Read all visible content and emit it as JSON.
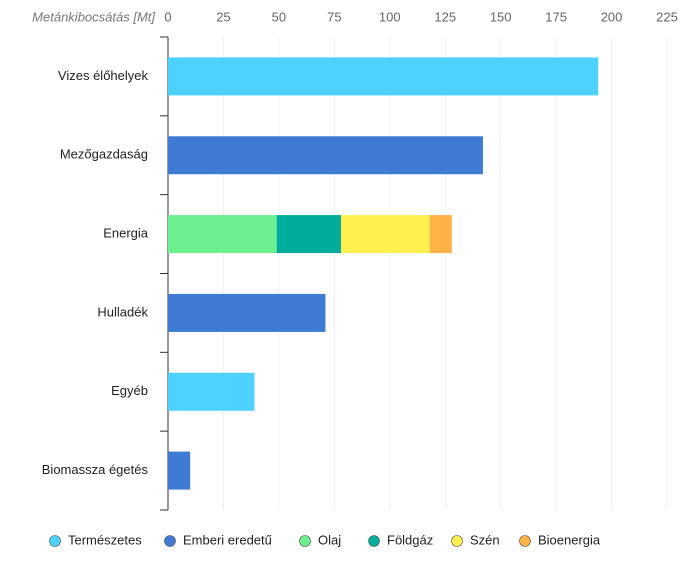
{
  "chart_data": {
    "type": "stacked-barh",
    "x_label": "Metánkibocsátás [Mt]",
    "categories": [
      "Vizes élőhelyek",
      "Mezőgazdaság",
      "Energia",
      "Hulladék",
      "Egyéb",
      "Biomassza égetés"
    ],
    "series": [
      {
        "name": "Természetes",
        "color": "#4dd2ff",
        "values": [
          194,
          null,
          null,
          null,
          39,
          null
        ]
      },
      {
        "name": "Emberi eredetű",
        "color": "#3f7bd4",
        "values": [
          null,
          142,
          null,
          71,
          null,
          10
        ]
      },
      {
        "name": "Olaj",
        "color": "#6cf08f",
        "values": [
          null,
          null,
          49,
          null,
          null,
          null
        ]
      },
      {
        "name": "Földgáz",
        "color": "#00ad9c",
        "values": [
          null,
          null,
          29,
          null,
          null,
          null
        ]
      },
      {
        "name": "Szén",
        "color": "#ffef4f",
        "values": [
          null,
          null,
          40,
          null,
          null,
          null
        ]
      },
      {
        "name": "Bioenergia",
        "color": "#ffb347",
        "values": [
          null,
          null,
          10,
          null,
          null,
          null
        ]
      }
    ],
    "xlim": [
      0,
      225
    ],
    "xticks": [
      0,
      25,
      50,
      75,
      100,
      125,
      150,
      175,
      200,
      225
    ],
    "grid": true
  }
}
